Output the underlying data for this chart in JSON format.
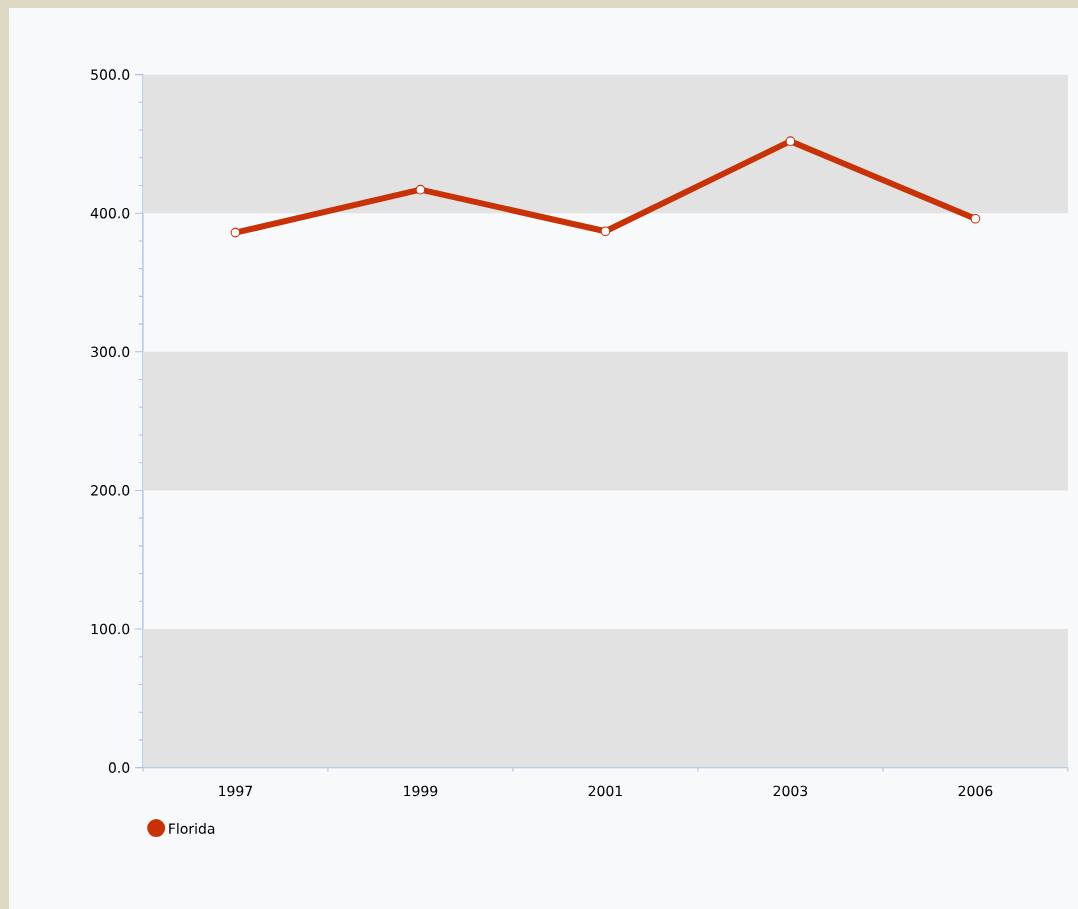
{
  "chart_data": {
    "type": "line",
    "categories": [
      "1997",
      "1999",
      "2001",
      "2003",
      "2006"
    ],
    "series": [
      {
        "name": "Florida",
        "color": "#c83206",
        "values": [
          386,
          417,
          387,
          452,
          396
        ]
      }
    ],
    "ylim": [
      0,
      500
    ],
    "yticks": [
      {
        "value": 0,
        "label": "0.0"
      },
      {
        "value": 100,
        "label": "100.0"
      },
      {
        "value": 200,
        "label": "200.0"
      },
      {
        "value": 300,
        "label": "300.0"
      },
      {
        "value": 400,
        "label": "400.0"
      },
      {
        "value": 500,
        "label": "500.0"
      }
    ],
    "legend": "bottom left",
    "marker": "circle",
    "line_style": "solid"
  }
}
